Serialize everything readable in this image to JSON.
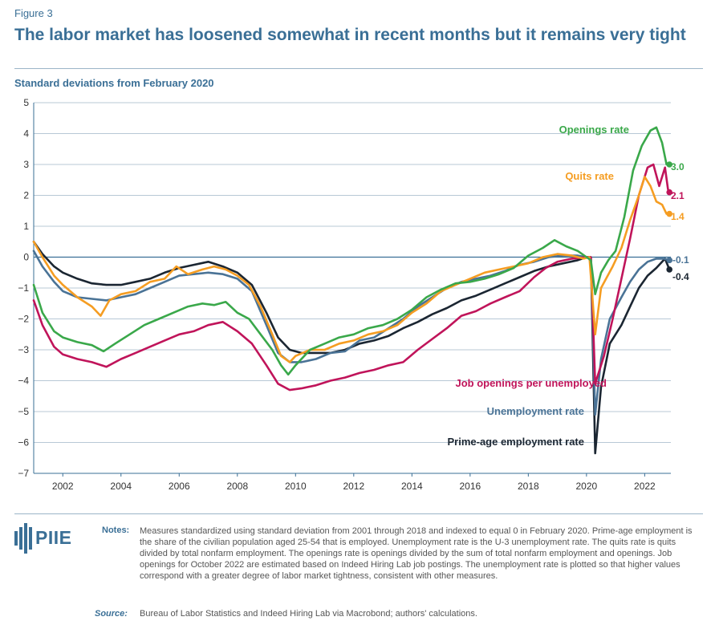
{
  "figure_label": "Figure 3",
  "title": "The labor market has loosened somewhat in recent months but it remains very tight",
  "y_axis_label": "Standard deviations from February 2020",
  "logo_text": "PIIE",
  "notes_label": "Notes:",
  "notes": "Measures standardized using standard deviation from 2001 through 2018 and indexed to equal 0 in February 2020. Prime-age employment is the share of the civilian population aged 25-54 that is employed. Unemployment rate is the U-3 unemployment rate. The quits rate is quits divided by total nonfarm employment. The openings rate is openings divided by the sum of total nonfarm employment and openings. Job openings for October 2022 are estimated based on Indeed Hiring Lab job postings. The unemployment rate is plotted so that higher values correspond with a greater degree of labor market tightness, consistent with other measures.",
  "source_label": "Source:",
  "source": "Bureau of Labor Statistics and Indeed Hiring Lab via Macrobond; authors' calculations.",
  "colors": {
    "openings": "#3aa84a",
    "quits": "#f59d22",
    "job_openings_per_unemployed": "#c0145a",
    "unemployment": "#4a7396",
    "prime_age": "#1b2632",
    "accent": "#3a6f96"
  },
  "chart_data": {
    "type": "line",
    "title": "The labor market has loosened somewhat in recent months but it remains very tight",
    "xlabel": "",
    "ylabel": "Standard deviations from February 2020",
    "xlim": [
      2001.0,
      2022.9
    ],
    "ylim": [
      -7,
      5
    ],
    "yticks": [
      -7,
      -6,
      -5,
      -4,
      -3,
      -2,
      -1,
      0,
      1,
      2,
      3,
      4,
      5
    ],
    "ytick_labels": [
      "−7",
      "−6",
      "−5",
      "−4",
      "−3",
      "−2",
      "−1",
      "0",
      "1",
      "2",
      "3",
      "4",
      "5"
    ],
    "xticks": [
      2002,
      2004,
      2006,
      2008,
      2010,
      2012,
      2014,
      2016,
      2018,
      2020,
      2022
    ],
    "xtick_labels": [
      "2002",
      "2004",
      "2006",
      "2008",
      "2010",
      "2012",
      "2014",
      "2016",
      "2018",
      "2020",
      "2022"
    ],
    "grid": true,
    "series": [
      {
        "key": "openings",
        "name": "Openings rate",
        "end_label": "3.0",
        "points": [
          [
            2001.0,
            -0.9
          ],
          [
            2001.3,
            -1.8
          ],
          [
            2001.7,
            -2.4
          ],
          [
            2002.0,
            -2.6
          ],
          [
            2002.5,
            -2.75
          ],
          [
            2003.0,
            -2.85
          ],
          [
            2003.4,
            -3.05
          ],
          [
            2003.8,
            -2.8
          ],
          [
            2004.3,
            -2.5
          ],
          [
            2004.8,
            -2.2
          ],
          [
            2005.3,
            -2.0
          ],
          [
            2005.8,
            -1.8
          ],
          [
            2006.3,
            -1.6
          ],
          [
            2006.8,
            -1.5
          ],
          [
            2007.2,
            -1.55
          ],
          [
            2007.6,
            -1.45
          ],
          [
            2008.0,
            -1.8
          ],
          [
            2008.4,
            -2.0
          ],
          [
            2008.8,
            -2.5
          ],
          [
            2009.2,
            -3.0
          ],
          [
            2009.5,
            -3.5
          ],
          [
            2009.75,
            -3.8
          ],
          [
            2010.0,
            -3.5
          ],
          [
            2010.5,
            -3.0
          ],
          [
            2011.0,
            -2.8
          ],
          [
            2011.5,
            -2.6
          ],
          [
            2012.0,
            -2.5
          ],
          [
            2012.5,
            -2.3
          ],
          [
            2013.0,
            -2.2
          ],
          [
            2013.5,
            -2.0
          ],
          [
            2014.0,
            -1.7
          ],
          [
            2014.5,
            -1.3
          ],
          [
            2015.0,
            -1.05
          ],
          [
            2015.5,
            -0.85
          ],
          [
            2016.0,
            -0.8
          ],
          [
            2016.5,
            -0.7
          ],
          [
            2017.0,
            -0.55
          ],
          [
            2017.5,
            -0.35
          ],
          [
            2018.0,
            0.05
          ],
          [
            2018.5,
            0.3
          ],
          [
            2018.9,
            0.55
          ],
          [
            2019.3,
            0.35
          ],
          [
            2019.7,
            0.2
          ],
          [
            2020.0,
            0.0
          ],
          [
            2020.15,
            -0.1
          ],
          [
            2020.3,
            -1.2
          ],
          [
            2020.5,
            -0.5
          ],
          [
            2020.75,
            -0.1
          ],
          [
            2021.0,
            0.2
          ],
          [
            2021.3,
            1.3
          ],
          [
            2021.6,
            2.8
          ],
          [
            2021.9,
            3.6
          ],
          [
            2022.2,
            4.1
          ],
          [
            2022.4,
            4.2
          ],
          [
            2022.6,
            3.7
          ],
          [
            2022.75,
            3.0
          ],
          [
            2022.85,
            3.0
          ]
        ]
      },
      {
        "key": "quits",
        "name": "Quits rate",
        "end_label": "1.4",
        "points": [
          [
            2001.0,
            0.5
          ],
          [
            2001.3,
            0.0
          ],
          [
            2001.7,
            -0.6
          ],
          [
            2002.0,
            -0.9
          ],
          [
            2002.5,
            -1.3
          ],
          [
            2003.0,
            -1.6
          ],
          [
            2003.3,
            -1.9
          ],
          [
            2003.6,
            -1.4
          ],
          [
            2004.0,
            -1.2
          ],
          [
            2004.5,
            -1.1
          ],
          [
            2005.0,
            -0.8
          ],
          [
            2005.5,
            -0.7
          ],
          [
            2005.9,
            -0.3
          ],
          [
            2006.3,
            -0.55
          ],
          [
            2006.8,
            -0.4
          ],
          [
            2007.2,
            -0.3
          ],
          [
            2007.6,
            -0.4
          ],
          [
            2008.0,
            -0.6
          ],
          [
            2008.4,
            -0.9
          ],
          [
            2008.8,
            -1.6
          ],
          [
            2009.2,
            -2.5
          ],
          [
            2009.5,
            -3.2
          ],
          [
            2009.8,
            -3.4
          ],
          [
            2010.0,
            -3.2
          ],
          [
            2010.5,
            -3.0
          ],
          [
            2011.0,
            -3.0
          ],
          [
            2011.5,
            -2.8
          ],
          [
            2012.0,
            -2.7
          ],
          [
            2012.5,
            -2.5
          ],
          [
            2013.0,
            -2.4
          ],
          [
            2013.5,
            -2.2
          ],
          [
            2014.0,
            -1.8
          ],
          [
            2014.5,
            -1.5
          ],
          [
            2015.0,
            -1.1
          ],
          [
            2015.5,
            -0.9
          ],
          [
            2016.0,
            -0.7
          ],
          [
            2016.5,
            -0.5
          ],
          [
            2017.0,
            -0.4
          ],
          [
            2017.5,
            -0.3
          ],
          [
            2018.0,
            -0.2
          ],
          [
            2018.5,
            0.0
          ],
          [
            2019.0,
            0.1
          ],
          [
            2019.5,
            0.05
          ],
          [
            2019.9,
            -0.05
          ],
          [
            2020.1,
            0.0
          ],
          [
            2020.3,
            -2.5
          ],
          [
            2020.5,
            -1.0
          ],
          [
            2020.9,
            -0.3
          ],
          [
            2021.2,
            0.3
          ],
          [
            2021.5,
            1.2
          ],
          [
            2021.8,
            2.0
          ],
          [
            2022.0,
            2.6
          ],
          [
            2022.2,
            2.3
          ],
          [
            2022.4,
            1.8
          ],
          [
            2022.6,
            1.7
          ],
          [
            2022.75,
            1.4
          ],
          [
            2022.85,
            1.4
          ]
        ]
      },
      {
        "key": "job_openings_per_unemployed",
        "name": "Job openings per unemployed",
        "end_label": "2.1",
        "points": [
          [
            2001.0,
            -1.4
          ],
          [
            2001.3,
            -2.2
          ],
          [
            2001.7,
            -2.9
          ],
          [
            2002.0,
            -3.15
          ],
          [
            2002.5,
            -3.3
          ],
          [
            2003.0,
            -3.4
          ],
          [
            2003.5,
            -3.55
          ],
          [
            2004.0,
            -3.3
          ],
          [
            2004.5,
            -3.1
          ],
          [
            2005.0,
            -2.9
          ],
          [
            2005.5,
            -2.7
          ],
          [
            2006.0,
            -2.5
          ],
          [
            2006.5,
            -2.4
          ],
          [
            2007.0,
            -2.2
          ],
          [
            2007.5,
            -2.1
          ],
          [
            2008.0,
            -2.4
          ],
          [
            2008.5,
            -2.8
          ],
          [
            2009.0,
            -3.5
          ],
          [
            2009.4,
            -4.1
          ],
          [
            2009.8,
            -4.3
          ],
          [
            2010.2,
            -4.25
          ],
          [
            2010.7,
            -4.15
          ],
          [
            2011.2,
            -4.0
          ],
          [
            2011.7,
            -3.9
          ],
          [
            2012.2,
            -3.75
          ],
          [
            2012.7,
            -3.65
          ],
          [
            2013.2,
            -3.5
          ],
          [
            2013.7,
            -3.4
          ],
          [
            2014.2,
            -3.0
          ],
          [
            2014.7,
            -2.65
          ],
          [
            2015.2,
            -2.3
          ],
          [
            2015.7,
            -1.9
          ],
          [
            2016.2,
            -1.75
          ],
          [
            2016.7,
            -1.5
          ],
          [
            2017.2,
            -1.3
          ],
          [
            2017.7,
            -1.1
          ],
          [
            2018.2,
            -0.65
          ],
          [
            2018.6,
            -0.35
          ],
          [
            2019.0,
            -0.15
          ],
          [
            2019.5,
            -0.05
          ],
          [
            2020.0,
            0.0
          ],
          [
            2020.15,
            0.0
          ],
          [
            2020.3,
            -4.1
          ],
          [
            2020.6,
            -3.2
          ],
          [
            2020.9,
            -2.0
          ],
          [
            2021.2,
            -0.7
          ],
          [
            2021.5,
            0.6
          ],
          [
            2021.8,
            2.0
          ],
          [
            2022.1,
            2.9
          ],
          [
            2022.3,
            3.0
          ],
          [
            2022.5,
            2.3
          ],
          [
            2022.7,
            2.9
          ],
          [
            2022.8,
            2.2
          ],
          [
            2022.85,
            2.1
          ]
        ]
      },
      {
        "key": "unemployment",
        "name": "Unemployment rate",
        "end_label": "-0.1",
        "points": [
          [
            2001.0,
            0.2
          ],
          [
            2001.3,
            -0.3
          ],
          [
            2001.7,
            -0.8
          ],
          [
            2002.0,
            -1.1
          ],
          [
            2002.5,
            -1.3
          ],
          [
            2003.0,
            -1.35
          ],
          [
            2003.5,
            -1.4
          ],
          [
            2004.0,
            -1.3
          ],
          [
            2004.5,
            -1.2
          ],
          [
            2005.0,
            -1.0
          ],
          [
            2005.5,
            -0.8
          ],
          [
            2006.0,
            -0.6
          ],
          [
            2006.5,
            -0.55
          ],
          [
            2007.0,
            -0.5
          ],
          [
            2007.5,
            -0.55
          ],
          [
            2008.0,
            -0.7
          ],
          [
            2008.5,
            -1.1
          ],
          [
            2009.0,
            -2.2
          ],
          [
            2009.4,
            -3.1
          ],
          [
            2009.8,
            -3.4
          ],
          [
            2010.2,
            -3.4
          ],
          [
            2010.7,
            -3.3
          ],
          [
            2011.2,
            -3.1
          ],
          [
            2011.7,
            -3.05
          ],
          [
            2012.2,
            -2.7
          ],
          [
            2012.7,
            -2.6
          ],
          [
            2013.2,
            -2.3
          ],
          [
            2013.7,
            -2.0
          ],
          [
            2014.2,
            -1.6
          ],
          [
            2014.7,
            -1.3
          ],
          [
            2015.2,
            -1.0
          ],
          [
            2015.7,
            -0.8
          ],
          [
            2016.2,
            -0.7
          ],
          [
            2016.7,
            -0.6
          ],
          [
            2017.2,
            -0.45
          ],
          [
            2017.7,
            -0.25
          ],
          [
            2018.2,
            -0.15
          ],
          [
            2018.7,
            0.0
          ],
          [
            2019.2,
            0.05
          ],
          [
            2019.7,
            0.05
          ],
          [
            2020.0,
            0.0
          ],
          [
            2020.15,
            0.0
          ],
          [
            2020.3,
            -5.1
          ],
          [
            2020.5,
            -3.3
          ],
          [
            2020.8,
            -2.0
          ],
          [
            2021.2,
            -1.3
          ],
          [
            2021.5,
            -0.8
          ],
          [
            2021.8,
            -0.4
          ],
          [
            2022.1,
            -0.15
          ],
          [
            2022.4,
            -0.05
          ],
          [
            2022.65,
            -0.05
          ],
          [
            2022.85,
            -0.1
          ]
        ]
      },
      {
        "key": "prime_age",
        "name": "Prime-age employment rate",
        "end_label": "-0.4",
        "points": [
          [
            2001.0,
            0.5
          ],
          [
            2001.3,
            0.1
          ],
          [
            2001.7,
            -0.3
          ],
          [
            2002.0,
            -0.5
          ],
          [
            2002.5,
            -0.7
          ],
          [
            2003.0,
            -0.85
          ],
          [
            2003.5,
            -0.9
          ],
          [
            2004.0,
            -0.9
          ],
          [
            2004.5,
            -0.8
          ],
          [
            2005.0,
            -0.7
          ],
          [
            2005.5,
            -0.5
          ],
          [
            2006.0,
            -0.35
          ],
          [
            2006.5,
            -0.25
          ],
          [
            2007.0,
            -0.15
          ],
          [
            2007.5,
            -0.3
          ],
          [
            2008.0,
            -0.5
          ],
          [
            2008.5,
            -0.9
          ],
          [
            2009.0,
            -1.8
          ],
          [
            2009.4,
            -2.6
          ],
          [
            2009.8,
            -3.0
          ],
          [
            2010.2,
            -3.1
          ],
          [
            2010.7,
            -3.1
          ],
          [
            2011.2,
            -3.1
          ],
          [
            2011.7,
            -3.0
          ],
          [
            2012.2,
            -2.8
          ],
          [
            2012.7,
            -2.7
          ],
          [
            2013.2,
            -2.55
          ],
          [
            2013.7,
            -2.3
          ],
          [
            2014.2,
            -2.1
          ],
          [
            2014.7,
            -1.85
          ],
          [
            2015.2,
            -1.65
          ],
          [
            2015.7,
            -1.4
          ],
          [
            2016.2,
            -1.25
          ],
          [
            2016.7,
            -1.05
          ],
          [
            2017.2,
            -0.85
          ],
          [
            2017.7,
            -0.65
          ],
          [
            2018.2,
            -0.45
          ],
          [
            2018.7,
            -0.3
          ],
          [
            2019.2,
            -0.2
          ],
          [
            2019.7,
            -0.1
          ],
          [
            2020.0,
            0.0
          ],
          [
            2020.15,
            0.0
          ],
          [
            2020.3,
            -6.35
          ],
          [
            2020.5,
            -4.2
          ],
          [
            2020.8,
            -2.8
          ],
          [
            2021.2,
            -2.2
          ],
          [
            2021.5,
            -1.6
          ],
          [
            2021.8,
            -1.0
          ],
          [
            2022.1,
            -0.6
          ],
          [
            2022.4,
            -0.35
          ],
          [
            2022.7,
            -0.05
          ],
          [
            2022.85,
            -0.4
          ]
        ]
      }
    ]
  }
}
